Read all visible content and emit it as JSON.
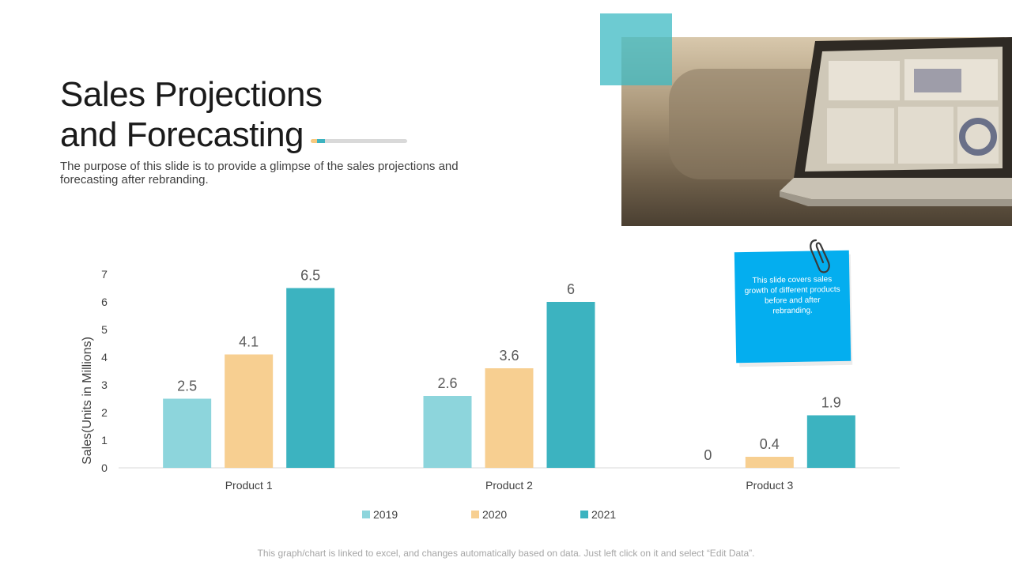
{
  "slide": {
    "title_line1": "Sales Projections",
    "title_line2": "and Forecasting",
    "subtitle": "The purpose of this slide is to provide a glimpse of the sales projections and forecasting after rebranding.",
    "note": "This slide covers sales growth of different products before and after rebranding.",
    "footer": "This graph/chart is linked to excel, and changes automatically based on data. Just left click on it and select “Edit Data”."
  },
  "colors": {
    "s2019": "#8dd5dc",
    "s2020": "#f7cf91",
    "s2021": "#3cb3c0",
    "note": "#04aeef"
  },
  "chart_data": {
    "type": "bar",
    "categories": [
      "Product 1",
      "Product 2",
      "Product 3"
    ],
    "series": [
      {
        "name": "2019",
        "values": [
          2.5,
          2.6,
          0
        ]
      },
      {
        "name": "2020",
        "values": [
          4.1,
          3.6,
          0.4
        ]
      },
      {
        "name": "2021",
        "values": [
          6.5,
          6,
          1.9
        ]
      }
    ],
    "ylabel": "Sales(Units in Millions)",
    "xlabel": "",
    "ylim": [
      0,
      7
    ],
    "yticks": [
      0,
      1,
      2,
      3,
      4,
      5,
      6,
      7
    ],
    "legend_position": "bottom",
    "grid": false,
    "data_labels": true
  }
}
